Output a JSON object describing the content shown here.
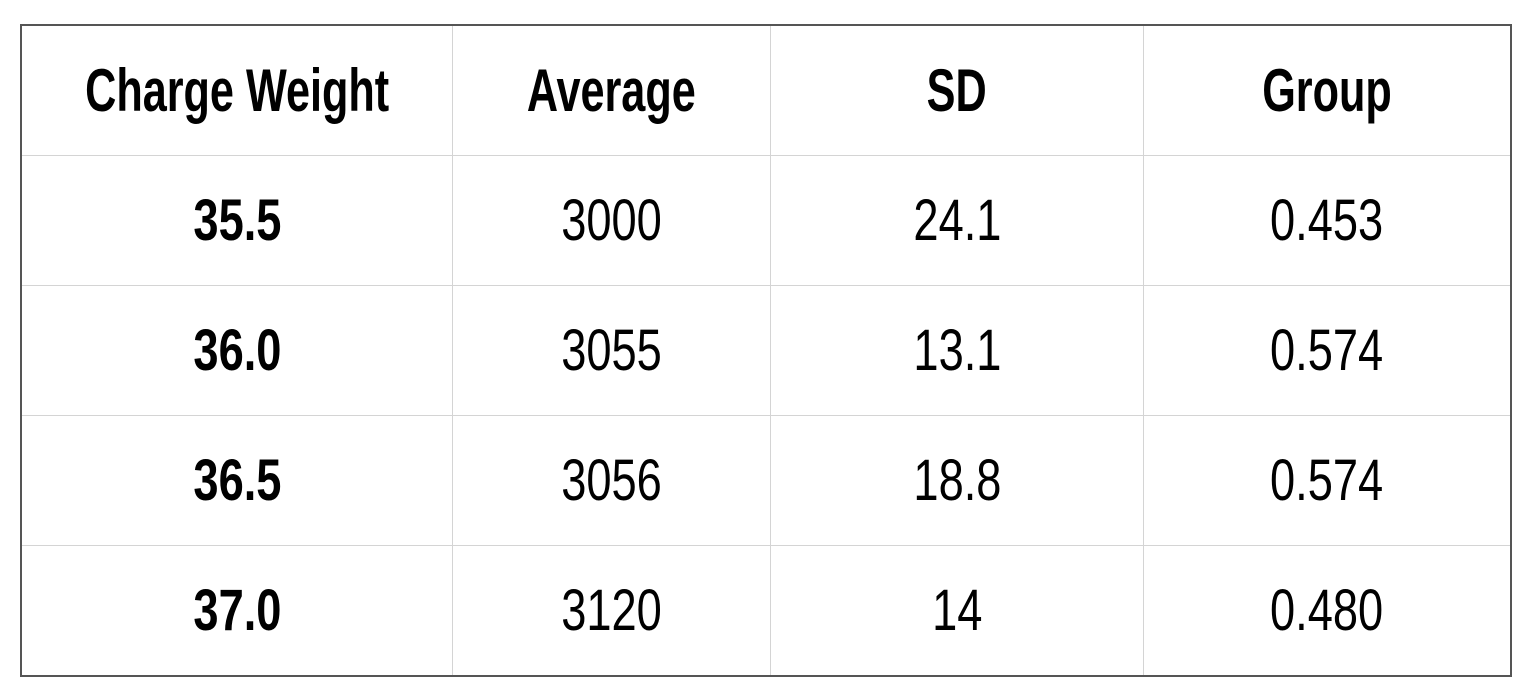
{
  "chart_data": {
    "type": "table",
    "columns": [
      "Charge Weight",
      "Average",
      "SD",
      "Group"
    ],
    "rows": [
      [
        "35.5",
        "3000",
        "24.1",
        "0.453"
      ],
      [
        "36.0",
        "3055",
        "13.1",
        "0.574"
      ],
      [
        "36.5",
        "3056",
        "18.8",
        "0.574"
      ],
      [
        "37.0",
        "3120",
        "14",
        "0.480"
      ]
    ]
  }
}
